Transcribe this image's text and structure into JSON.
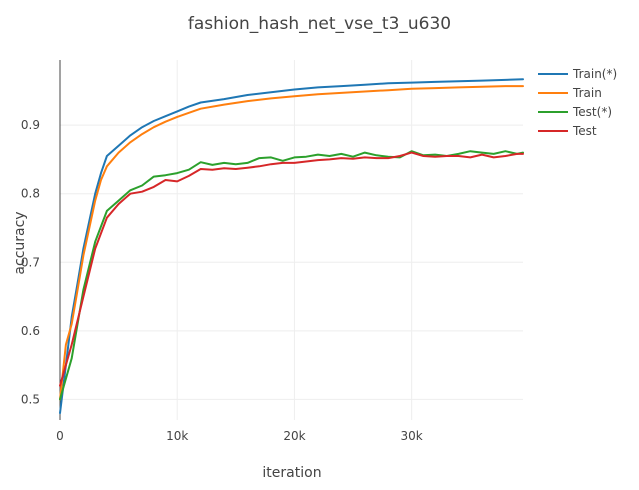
{
  "chart_data": {
    "type": "line",
    "title": "fashion_hash_net_vse_t3_u630",
    "xlabel": "iteration",
    "ylabel": "accuracy",
    "xlim": [
      0,
      39500
    ],
    "ylim": [
      0.47,
      0.995
    ],
    "x_ticks": [
      0,
      10000,
      20000,
      30000
    ],
    "x_tick_labels": [
      "0",
      "10k",
      "20k",
      "30k"
    ],
    "y_ticks": [
      0.5,
      0.6,
      0.7,
      0.8,
      0.9
    ],
    "y_tick_labels": [
      "0.5",
      "0.6",
      "0.7",
      "0.8",
      "0.9"
    ],
    "grid": true,
    "legend_position": "top-right",
    "series": [
      {
        "name": "Train(*)",
        "color": "#1f77b4",
        "x": [
          0,
          500,
          1000,
          1500,
          2000,
          2500,
          3000,
          3500,
          4000,
          5000,
          6000,
          7000,
          8000,
          9000,
          10000,
          11000,
          12000,
          14000,
          16000,
          18000,
          20000,
          22000,
          24000,
          26000,
          28000,
          30000,
          32000,
          34000,
          36000,
          38000,
          39500
        ],
        "values": [
          0.48,
          0.55,
          0.62,
          0.67,
          0.72,
          0.76,
          0.8,
          0.83,
          0.855,
          0.87,
          0.885,
          0.897,
          0.906,
          0.913,
          0.92,
          0.927,
          0.933,
          0.938,
          0.944,
          0.948,
          0.952,
          0.955,
          0.957,
          0.959,
          0.961,
          0.962,
          0.963,
          0.964,
          0.965,
          0.966,
          0.967
        ]
      },
      {
        "name": "Train",
        "color": "#ff7f0e",
        "x": [
          0,
          500,
          1000,
          1500,
          2000,
          2500,
          3000,
          3500,
          4000,
          5000,
          6000,
          7000,
          8000,
          9000,
          10000,
          11000,
          12000,
          14000,
          16000,
          18000,
          20000,
          22000,
          24000,
          26000,
          28000,
          30000,
          32000,
          34000,
          36000,
          38000,
          39500
        ],
        "values": [
          0.5,
          0.58,
          0.61,
          0.66,
          0.71,
          0.75,
          0.79,
          0.82,
          0.84,
          0.86,
          0.875,
          0.887,
          0.897,
          0.905,
          0.912,
          0.918,
          0.924,
          0.93,
          0.935,
          0.939,
          0.942,
          0.945,
          0.947,
          0.949,
          0.951,
          0.953,
          0.954,
          0.955,
          0.956,
          0.957,
          0.957
        ]
      },
      {
        "name": "Test(*)",
        "color": "#2ca02c",
        "x": [
          0,
          1000,
          2000,
          3000,
          4000,
          5000,
          6000,
          7000,
          8000,
          9000,
          10000,
          11000,
          12000,
          13000,
          14000,
          15000,
          16000,
          17000,
          18000,
          19000,
          20000,
          21000,
          22000,
          23000,
          24000,
          25000,
          26000,
          27000,
          28000,
          29000,
          30000,
          31000,
          32000,
          33000,
          34000,
          35000,
          36000,
          37000,
          38000,
          39000,
          39500
        ],
        "values": [
          0.5,
          0.56,
          0.66,
          0.73,
          0.775,
          0.79,
          0.805,
          0.812,
          0.825,
          0.827,
          0.83,
          0.835,
          0.846,
          0.842,
          0.845,
          0.843,
          0.845,
          0.852,
          0.853,
          0.848,
          0.853,
          0.854,
          0.857,
          0.855,
          0.858,
          0.854,
          0.86,
          0.856,
          0.854,
          0.853,
          0.862,
          0.856,
          0.857,
          0.855,
          0.858,
          0.862,
          0.86,
          0.858,
          0.862,
          0.858,
          0.86
        ]
      },
      {
        "name": "Test",
        "color": "#d62728",
        "x": [
          0,
          1000,
          2000,
          3000,
          4000,
          5000,
          6000,
          7000,
          8000,
          9000,
          10000,
          11000,
          12000,
          13000,
          14000,
          15000,
          16000,
          17000,
          18000,
          19000,
          20000,
          21000,
          22000,
          23000,
          24000,
          25000,
          26000,
          27000,
          28000,
          29000,
          30000,
          31000,
          32000,
          33000,
          34000,
          35000,
          36000,
          37000,
          38000,
          39000,
          39500
        ],
        "values": [
          0.52,
          0.58,
          0.65,
          0.72,
          0.765,
          0.785,
          0.8,
          0.803,
          0.81,
          0.82,
          0.818,
          0.826,
          0.836,
          0.835,
          0.837,
          0.836,
          0.838,
          0.84,
          0.843,
          0.845,
          0.845,
          0.847,
          0.849,
          0.85,
          0.852,
          0.851,
          0.853,
          0.852,
          0.852,
          0.855,
          0.86,
          0.855,
          0.854,
          0.855,
          0.855,
          0.853,
          0.857,
          0.853,
          0.855,
          0.858,
          0.858
        ]
      }
    ]
  }
}
